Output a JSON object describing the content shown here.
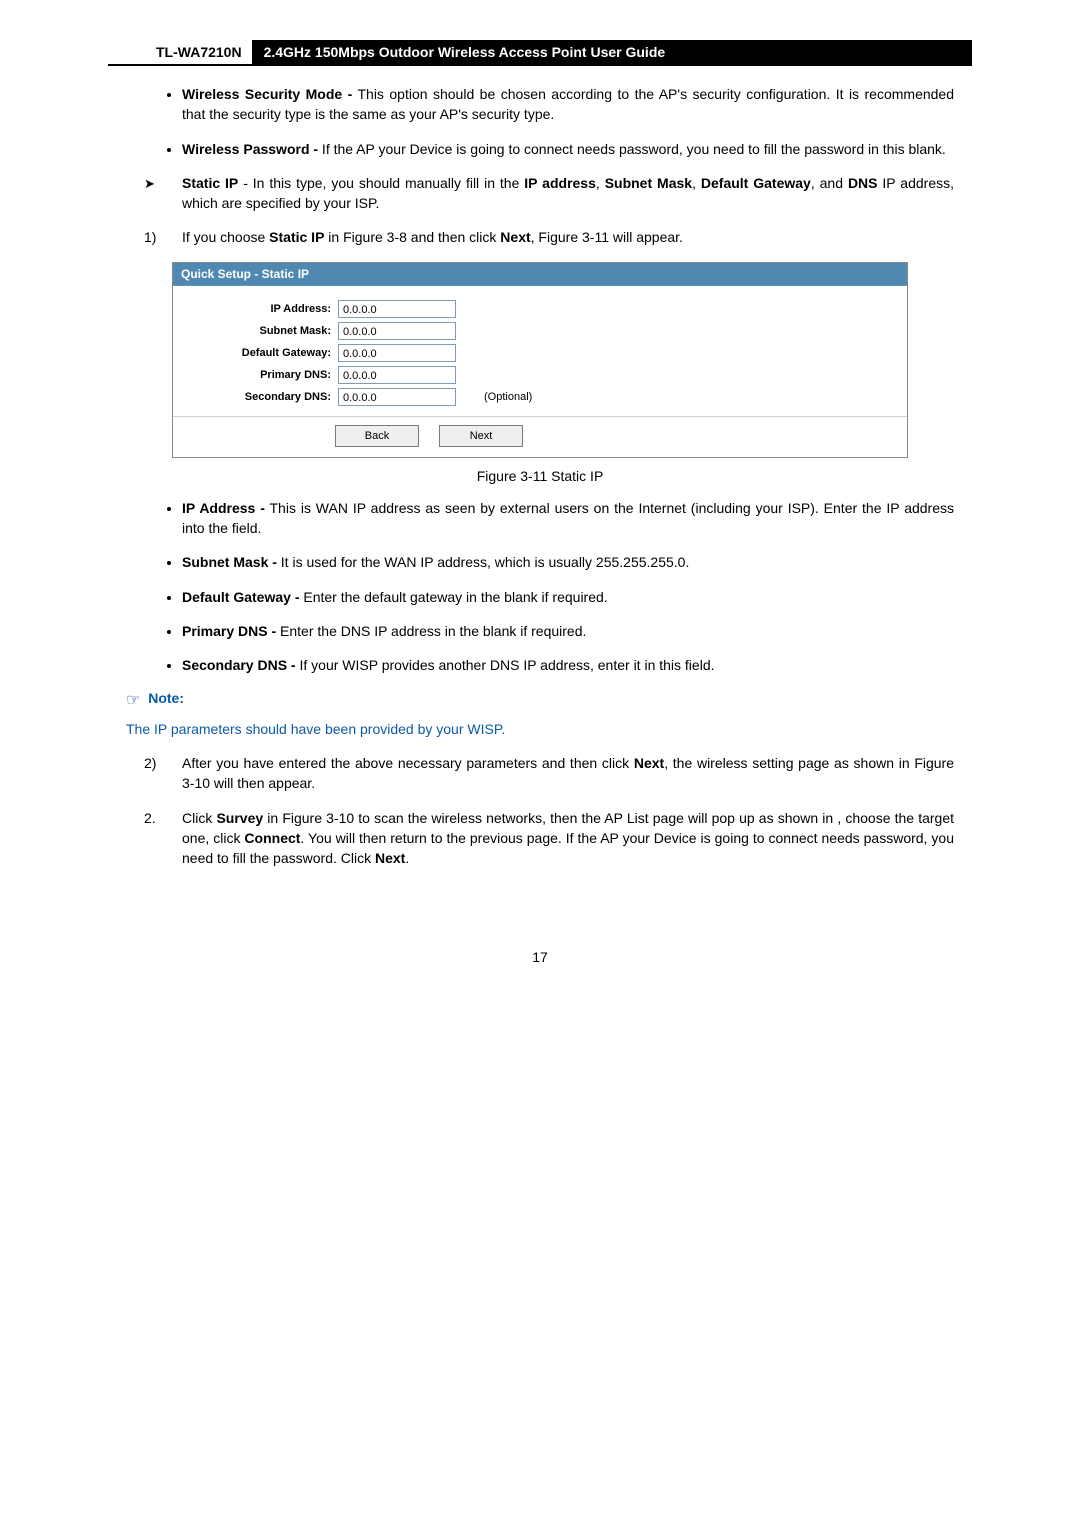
{
  "header": {
    "model": "TL-WA7210N",
    "guide_title": "2.4GHz 150Mbps Outdoor Wireless Access Point User Guide"
  },
  "section1_bullets": [
    {
      "term": "Wireless Security Mode -",
      "desc": " This option should be chosen according to the AP's security configuration. It is recommended that the security type is the same as your AP's security type."
    },
    {
      "term": "Wireless Password -",
      "desc": " If the AP your Device is going to connect needs password, you need to fill the password in this blank."
    }
  ],
  "static_ip_item": {
    "prefix": "Static IP",
    "mid1": " - In this type, you should manually fill in the ",
    "b1": "IP address",
    "c1": ", ",
    "b2": "Subnet Mask",
    "c2": ", ",
    "b3": "Default Gateway",
    "c3": ", and ",
    "b4": "DNS",
    "tail": " IP address, which are specified by your ISP."
  },
  "step1": {
    "marker": "1)",
    "p1": "If you choose ",
    "b1": "Static IP",
    "p2": " in Figure 3-8 and then click ",
    "b2": "Next",
    "p3": ", Figure 3-11 will appear."
  },
  "figure": {
    "title": "Quick Setup - Static IP",
    "rows": {
      "ip": {
        "label": "IP Address:",
        "value": "0.0.0.0",
        "optional": ""
      },
      "mask": {
        "label": "Subnet Mask:",
        "value": "0.0.0.0",
        "optional": ""
      },
      "gw": {
        "label": "Default Gateway:",
        "value": "0.0.0.0",
        "optional": ""
      },
      "pdns": {
        "label": "Primary DNS:",
        "value": "0.0.0.0",
        "optional": ""
      },
      "sdns": {
        "label": "Secondary DNS:",
        "value": "0.0.0.0",
        "optional": "(Optional)"
      }
    },
    "buttons": {
      "back": "Back",
      "next": "Next"
    },
    "caption": "Figure 3-11 Static IP"
  },
  "section2_bullets": [
    {
      "term": "IP Address -",
      "desc": " This is WAN IP address as seen by external users on the Internet (including your ISP). Enter the IP address into the field."
    },
    {
      "term": "Subnet Mask -",
      "desc": " It is used for the WAN IP address, which is usually 255.255.255.0."
    },
    {
      "term": "Default Gateway -",
      "desc": " Enter the default gateway in the blank if required."
    },
    {
      "term": "Primary DNS -",
      "desc": " Enter the DNS IP address in the blank if required."
    },
    {
      "term": "Secondary DNS -",
      "desc": " If your WISP provides another DNS IP address, enter it in this field."
    }
  ],
  "note": {
    "icon": "☞",
    "label": "Note:",
    "text": "The IP parameters should have been provided by your WISP."
  },
  "step2_sub": {
    "marker": "2)",
    "p1": "After you have entered the above necessary parameters and then click ",
    "b1": "Next",
    "p2": ", the wireless setting page as shown in Figure 3-10 will then appear."
  },
  "step2_main": {
    "marker": "2.",
    "p1": "Click ",
    "b1": "Survey",
    "p2": " in Figure 3-10 to scan the wireless networks, then the AP List page will pop up as shown in , choose the target one, click ",
    "b2": "Connect",
    "p3": ". You will then return to the previous page. If the AP your Device is going to connect needs password, you need to fill the password. Click ",
    "b3": "Next",
    "p4": "."
  },
  "page_number": "17"
}
